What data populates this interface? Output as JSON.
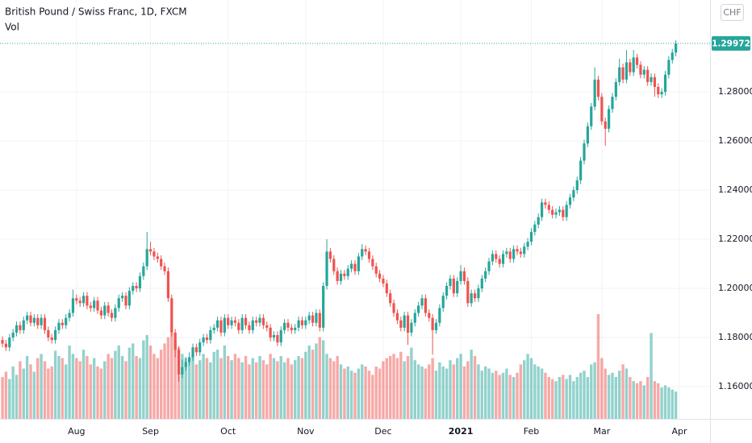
{
  "chart_data": {
    "type": "candlestick",
    "title": "British Pound / Swiss Franc, 1D, FXCM",
    "subtitle": "Vol",
    "currency": "CHF",
    "up_color": "#26a69a",
    "down_color": "#ef5350",
    "xlim": [
      -0.7,
      200.7
    ],
    "xticks": [
      {
        "value": 21,
        "label": "Aug"
      },
      {
        "value": 42,
        "label": "Sep"
      },
      {
        "value": 64,
        "label": "Oct"
      },
      {
        "value": 86,
        "label": "Nov"
      },
      {
        "value": 108,
        "label": "Dec"
      },
      {
        "value": 130,
        "label": "2021"
      },
      {
        "value": 150,
        "label": "Feb"
      },
      {
        "value": 170,
        "label": "Mar"
      },
      {
        "value": 192,
        "label": "Apr"
      }
    ],
    "ylim": [
      1.1469,
      1.3174
    ],
    "yticks": [
      {
        "value": 1.16,
        "label": "1.16000"
      },
      {
        "value": 1.18,
        "label": "1.18000"
      },
      {
        "value": 1.2,
        "label": "1.20000"
      },
      {
        "value": 1.22,
        "label": "1.22000"
      },
      {
        "value": 1.24,
        "label": "1.24000"
      },
      {
        "value": 1.26,
        "label": "1.26000"
      },
      {
        "value": 1.28,
        "label": "1.28000"
      }
    ],
    "grid": true,
    "volume_lim": [
      0,
      400
    ],
    "open": [
      1.179,
      1.1775,
      1.176,
      1.18,
      1.182,
      1.185,
      1.183,
      1.187,
      1.189,
      1.186,
      1.188,
      1.185,
      1.188,
      1.183,
      1.18,
      1.179,
      1.183,
      1.186,
      1.185,
      1.188,
      1.19,
      1.196,
      1.195,
      1.194,
      1.197,
      1.193,
      1.192,
      1.195,
      1.191,
      1.189,
      1.193,
      1.19,
      1.188,
      1.192,
      1.196,
      1.197,
      1.193,
      1.199,
      1.201,
      1.2,
      1.205,
      1.209,
      1.216,
      1.215,
      1.213,
      1.212,
      1.209,
      1.207,
      1.196,
      1.182,
      1.175,
      1.165,
      1.168,
      1.17,
      1.172,
      1.176,
      1.174,
      1.178,
      1.18,
      1.179,
      1.183,
      1.184,
      1.187,
      1.182,
      1.188,
      1.185,
      1.187,
      1.186,
      1.183,
      1.188,
      1.185,
      1.183,
      1.187,
      1.186,
      1.188,
      1.185,
      1.184,
      1.18,
      1.181,
      1.178,
      1.183,
      1.186,
      1.184,
      1.183,
      1.184,
      1.187,
      1.185,
      1.187,
      1.189,
      1.186,
      1.19,
      1.184,
      1.201,
      1.215,
      1.212,
      1.207,
      1.203,
      1.206,
      1.205,
      1.208,
      1.21,
      1.207,
      1.213,
      1.216,
      1.215,
      1.212,
      1.209,
      1.206,
      1.204,
      1.202,
      1.198,
      1.194,
      1.19,
      1.187,
      1.184,
      1.189,
      1.182,
      1.186,
      1.19,
      1.193,
      1.196,
      1.19,
      1.188,
      1.183,
      1.186,
      1.192,
      1.197,
      1.201,
      1.204,
      1.198,
      1.203,
      1.207,
      1.203,
      1.194,
      1.198,
      1.196,
      1.2,
      1.204,
      1.207,
      1.211,
      1.214,
      1.212,
      1.21,
      1.214,
      1.215,
      1.212,
      1.216,
      1.215,
      1.214,
      1.217,
      1.219,
      1.223,
      1.226,
      1.229,
      1.235,
      1.234,
      1.232,
      1.23,
      1.231,
      1.232,
      1.229,
      1.234,
      1.237,
      1.24,
      1.244,
      1.252,
      1.259,
      1.266,
      1.274,
      1.285,
      1.278,
      1.268,
      1.265,
      1.273,
      1.278,
      1.284,
      1.29,
      1.285,
      1.292,
      1.288,
      1.294,
      1.291,
      1.287,
      1.289,
      1.284,
      1.286,
      1.282,
      1.279,
      1.28,
      1.287,
      1.293,
      1.296
    ],
    "high": [
      1.1805,
      1.179,
      1.1815,
      1.1835,
      1.1865,
      1.1865,
      1.1885,
      1.1905,
      1.1905,
      1.1895,
      1.1895,
      1.1895,
      1.1895,
      1.1845,
      1.1815,
      1.1845,
      1.1875,
      1.1875,
      1.1895,
      1.1915,
      1.1995,
      1.1975,
      1.1965,
      1.1985,
      1.1985,
      1.1945,
      1.1965,
      1.1965,
      1.1925,
      1.1945,
      1.1945,
      1.1915,
      1.1935,
      1.1975,
      1.1985,
      1.1985,
      1.2005,
      1.2025,
      1.2025,
      1.2065,
      1.2105,
      1.223,
      1.219,
      1.2165,
      1.2145,
      1.2135,
      1.2105,
      1.2085,
      1.1975,
      1.1835,
      1.1765,
      1.171,
      1.172,
      1.174,
      1.1775,
      1.1775,
      1.1795,
      1.1815,
      1.1815,
      1.1845,
      1.1855,
      1.1885,
      1.1885,
      1.1895,
      1.1895,
      1.1885,
      1.1885,
      1.1875,
      1.1895,
      1.1895,
      1.1865,
      1.1885,
      1.1885,
      1.1895,
      1.1895,
      1.1865,
      1.1855,
      1.1825,
      1.1825,
      1.1845,
      1.1875,
      1.1875,
      1.1855,
      1.1855,
      1.1885,
      1.1885,
      1.1885,
      1.1905,
      1.1905,
      1.1915,
      1.1915,
      1.2025,
      1.22,
      1.2165,
      1.2135,
      1.2085,
      1.2075,
      1.2075,
      1.2095,
      1.2115,
      1.2115,
      1.2145,
      1.218,
      1.2175,
      1.2165,
      1.2135,
      1.2105,
      1.2075,
      1.2055,
      1.2035,
      1.1995,
      1.1955,
      1.1915,
      1.1885,
      1.1905,
      1.1905,
      1.1875,
      1.1915,
      1.1945,
      1.1975,
      1.1975,
      1.1915,
      1.1895,
      1.1875,
      1.1935,
      1.1985,
      1.2025,
      1.2055,
      1.2055,
      1.2045,
      1.2095,
      1.2085,
      1.2045,
      1.1995,
      1.1995,
      1.2015,
      1.2055,
      1.2085,
      1.2125,
      1.2155,
      1.2155,
      1.2135,
      1.2155,
      1.2165,
      1.2165,
      1.2175,
      1.2175,
      1.2165,
      1.2185,
      1.2205,
      1.2245,
      1.2275,
      1.2305,
      1.2365,
      1.2365,
      1.2355,
      1.2335,
      1.2325,
      1.2335,
      1.2335,
      1.2355,
      1.2385,
      1.2415,
      1.2455,
      1.2535,
      1.2605,
      1.2675,
      1.2755,
      1.29,
      1.2865,
      1.2795,
      1.2695,
      1.2745,
      1.2795,
      1.2855,
      1.2935,
      1.2915,
      1.297,
      1.2935,
      1.297,
      1.2955,
      1.2925,
      1.2905,
      1.2905,
      1.2875,
      1.2875,
      1.2835,
      1.2815,
      1.2885,
      1.2945,
      1.2975,
      1.301
    ],
    "low": [
      1.176,
      1.1745,
      1.1745,
      1.1785,
      1.1805,
      1.1815,
      1.1815,
      1.1855,
      1.1845,
      1.1845,
      1.1835,
      1.1835,
      1.1815,
      1.1785,
      1.1775,
      1.1775,
      1.1815,
      1.1835,
      1.1835,
      1.1865,
      1.1885,
      1.1935,
      1.1925,
      1.1925,
      1.1915,
      1.1905,
      1.1905,
      1.1895,
      1.1875,
      1.1875,
      1.1885,
      1.1865,
      1.1865,
      1.1905,
      1.1945,
      1.1915,
      1.1915,
      1.1975,
      1.1985,
      1.1985,
      1.2035,
      1.2075,
      1.2135,
      1.2115,
      1.2105,
      1.2075,
      1.2055,
      1.1945,
      1.1805,
      1.172,
      1.162,
      1.1635,
      1.1665,
      1.1685,
      1.1705,
      1.1725,
      1.1725,
      1.1765,
      1.1775,
      1.1775,
      1.1815,
      1.1825,
      1.1805,
      1.1805,
      1.1835,
      1.1835,
      1.1845,
      1.1815,
      1.1815,
      1.1835,
      1.1815,
      1.1815,
      1.1845,
      1.1845,
      1.1835,
      1.1825,
      1.1785,
      1.1785,
      1.1765,
      1.1765,
      1.1815,
      1.1825,
      1.1815,
      1.1815,
      1.1825,
      1.1835,
      1.1835,
      1.1855,
      1.1845,
      1.1845,
      1.1825,
      1.1825,
      1.1995,
      1.2105,
      1.2055,
      1.2015,
      1.2015,
      1.2035,
      1.2035,
      1.2065,
      1.2055,
      1.2055,
      1.2115,
      1.2135,
      1.2105,
      1.2075,
      1.2045,
      1.2025,
      1.2005,
      1.1965,
      1.1925,
      1.1885,
      1.1855,
      1.1825,
      1.1825,
      1.177,
      1.1805,
      1.1845,
      1.1885,
      1.1915,
      1.1885,
      1.1865,
      1.173,
      1.1815,
      1.1845,
      1.1905,
      1.1955,
      1.1995,
      1.1965,
      1.1965,
      1.2015,
      1.2015,
      1.1925,
      1.1925,
      1.1945,
      1.1945,
      1.1985,
      1.2025,
      1.2055,
      1.2095,
      1.2105,
      1.2085,
      1.2085,
      1.2125,
      1.2105,
      1.2105,
      1.2135,
      1.2125,
      1.2125,
      1.2155,
      1.2175,
      1.2215,
      1.2245,
      1.2275,
      1.2325,
      1.2305,
      1.2285,
      1.2285,
      1.2295,
      1.2275,
      1.2275,
      1.2325,
      1.2355,
      1.2385,
      1.2425,
      1.2505,
      1.2575,
      1.2645,
      1.2725,
      1.2765,
      1.2665,
      1.258,
      1.2635,
      1.2715,
      1.2765,
      1.2825,
      1.2835,
      1.2835,
      1.2865,
      1.2865,
      1.2895,
      1.2855,
      1.2855,
      1.2825,
      1.2825,
      1.278,
      1.2775,
      1.2775,
      1.2785,
      1.2855,
      1.2915,
      1.2945
    ],
    "close": [
      1.1775,
      1.176,
      1.18,
      1.182,
      1.185,
      1.183,
      1.187,
      1.189,
      1.186,
      1.188,
      1.185,
      1.188,
      1.183,
      1.18,
      1.179,
      1.183,
      1.186,
      1.185,
      1.188,
      1.19,
      1.196,
      1.195,
      1.194,
      1.197,
      1.193,
      1.192,
      1.195,
      1.191,
      1.189,
      1.193,
      1.19,
      1.188,
      1.192,
      1.196,
      1.197,
      1.193,
      1.199,
      1.201,
      1.2,
      1.205,
      1.209,
      1.216,
      1.215,
      1.213,
      1.212,
      1.209,
      1.207,
      1.196,
      1.182,
      1.175,
      1.165,
      1.168,
      1.17,
      1.172,
      1.176,
      1.174,
      1.178,
      1.18,
      1.179,
      1.183,
      1.184,
      1.187,
      1.182,
      1.188,
      1.185,
      1.187,
      1.186,
      1.183,
      1.188,
      1.185,
      1.183,
      1.187,
      1.186,
      1.188,
      1.185,
      1.184,
      1.18,
      1.181,
      1.178,
      1.183,
      1.186,
      1.184,
      1.183,
      1.184,
      1.187,
      1.185,
      1.187,
      1.189,
      1.186,
      1.19,
      1.184,
      1.201,
      1.215,
      1.212,
      1.207,
      1.203,
      1.206,
      1.205,
      1.208,
      1.21,
      1.207,
      1.213,
      1.216,
      1.215,
      1.212,
      1.209,
      1.206,
      1.204,
      1.202,
      1.198,
      1.194,
      1.19,
      1.187,
      1.184,
      1.189,
      1.182,
      1.186,
      1.19,
      1.193,
      1.196,
      1.19,
      1.188,
      1.183,
      1.186,
      1.192,
      1.197,
      1.201,
      1.204,
      1.198,
      1.203,
      1.207,
      1.203,
      1.194,
      1.198,
      1.196,
      1.2,
      1.204,
      1.207,
      1.211,
      1.214,
      1.212,
      1.21,
      1.214,
      1.215,
      1.212,
      1.216,
      1.215,
      1.214,
      1.217,
      1.219,
      1.223,
      1.226,
      1.229,
      1.235,
      1.234,
      1.232,
      1.23,
      1.231,
      1.232,
      1.229,
      1.234,
      1.237,
      1.24,
      1.244,
      1.252,
      1.259,
      1.266,
      1.274,
      1.285,
      1.278,
      1.268,
      1.265,
      1.273,
      1.278,
      1.284,
      1.29,
      1.285,
      1.292,
      1.288,
      1.294,
      1.291,
      1.287,
      1.289,
      1.284,
      1.286,
      1.282,
      1.279,
      1.28,
      1.287,
      1.293,
      1.296,
      1.29972
    ],
    "volume": [
      40,
      45,
      38,
      50,
      42,
      55,
      48,
      60,
      52,
      45,
      58,
      62,
      55,
      48,
      50,
      65,
      60,
      58,
      52,
      70,
      62,
      58,
      55,
      66,
      60,
      52,
      58,
      50,
      48,
      55,
      62,
      58,
      65,
      70,
      60,
      55,
      68,
      72,
      60,
      58,
      75,
      80,
      70,
      62,
      58,
      66,
      72,
      78,
      82,
      75,
      68,
      62,
      58,
      55,
      60,
      52,
      56,
      62,
      58,
      54,
      64,
      66,
      58,
      70,
      60,
      56,
      62,
      58,
      54,
      60,
      52,
      58,
      54,
      60,
      56,
      52,
      62,
      58,
      55,
      60,
      54,
      58,
      52,
      56,
      60,
      58,
      64,
      70,
      66,
      72,
      78,
      75,
      62,
      58,
      55,
      60,
      52,
      48,
      50,
      46,
      44,
      48,
      52,
      50,
      46,
      42,
      50,
      48,
      55,
      58,
      60,
      62,
      58,
      64,
      55,
      60,
      68,
      56,
      52,
      50,
      48,
      52,
      58,
      46,
      54,
      50,
      48,
      56,
      52,
      58,
      62,
      50,
      55,
      66,
      60,
      52,
      46,
      50,
      48,
      44,
      46,
      42,
      44,
      48,
      42,
      40,
      44,
      52,
      56,
      62,
      58,
      52,
      50,
      48,
      44,
      40,
      38,
      36,
      40,
      42,
      38,
      42,
      36,
      40,
      44,
      46,
      40,
      52,
      54,
      100,
      58,
      48,
      42,
      44,
      40,
      46,
      52,
      48,
      40,
      36,
      34,
      36,
      32,
      40,
      82,
      36,
      34,
      30,
      32,
      30,
      28,
      26
    ]
  }
}
